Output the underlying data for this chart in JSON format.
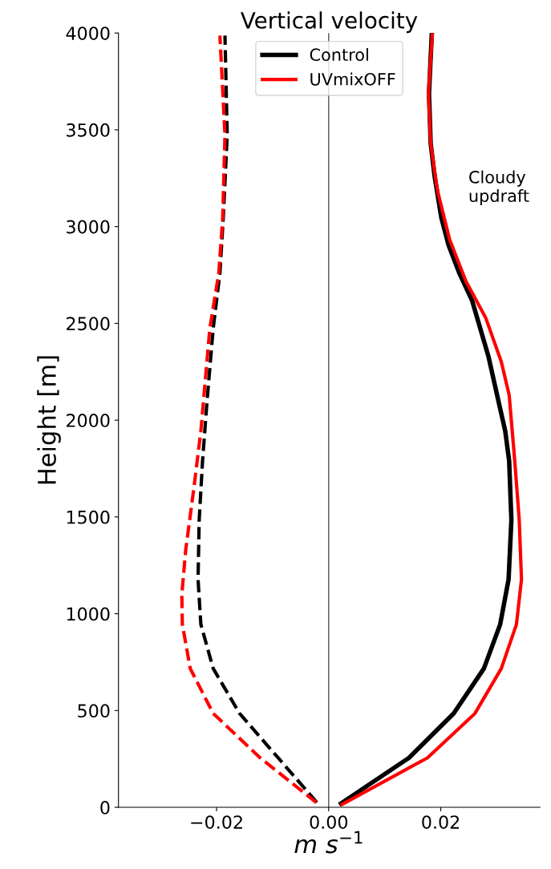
{
  "chart_data": {
    "type": "line",
    "title": "Vertical velocity",
    "xlabel": "m s$^{−1}$",
    "ylabel": "Height [m]",
    "annotations": [
      "Cloudy updraft"
    ],
    "xlim": [
      -0.0375,
      0.0377
    ],
    "ylim": [
      0,
      4000
    ],
    "xticks": [
      {
        "value": -0.02,
        "label": "−0.02"
      },
      {
        "value": 0,
        "label": "0.00"
      },
      {
        "value": 0.02,
        "label": "0.02"
      }
    ],
    "yticks": [
      0,
      500,
      1000,
      1500,
      2000,
      2500,
      3000,
      3500,
      4000
    ],
    "grid": false,
    "legend": "top",
    "ref_lines": [
      {
        "axis": "x",
        "value": 0,
        "color": "#555555"
      }
    ],
    "series": [
      {
        "name": "Control",
        "color": "#000000",
        "line_style": "solid",
        "x": [
          0.0022,
          0.0143,
          0.0223,
          0.0277,
          0.0306,
          0.0321,
          0.0326,
          0.0322,
          0.0315,
          0.0303,
          0.0285,
          0.0256,
          0.0233,
          0.0214,
          0.0201,
          0.0189,
          0.0182,
          0.0179,
          0.0184
        ],
        "values": [
          20,
          255,
          485,
          717,
          945,
          1177,
          1484,
          1790,
          1944,
          2097,
          2330,
          2617,
          2760,
          2903,
          3046,
          3260,
          3430,
          3688,
          3995
        ]
      },
      {
        "name": "UVmixOFF",
        "color": "#ff0000",
        "line_style": "solid",
        "x": [
          0.0024,
          0.0176,
          0.0261,
          0.0308,
          0.0335,
          0.0344,
          0.034,
          0.0332,
          0.0323,
          0.0322,
          0.0308,
          0.028,
          0.0245,
          0.0216,
          0.0194,
          0.0182,
          0.0178,
          0.0185
        ],
        "values": [
          15,
          255,
          485,
          717,
          945,
          1177,
          1484,
          1790,
          2097,
          2130,
          2302,
          2530,
          2717,
          2931,
          3188,
          3430,
          3688,
          3995
        ]
      },
      {
        "color": "#000000",
        "line_style": "dashed",
        "x": [
          -0.0021,
          -0.009,
          -0.0159,
          -0.0206,
          -0.0228,
          -0.0233,
          -0.0231,
          -0.0225,
          -0.0217,
          -0.0206,
          -0.0194,
          -0.0188,
          -0.0181,
          -0.0185
        ],
        "values": [
          25,
          255,
          485,
          717,
          945,
          1177,
          1484,
          1790,
          2097,
          2474,
          2760,
          3046,
          3473,
          3987
        ]
      },
      {
        "color": "#ff0000",
        "line_style": "dashed",
        "x": [
          -0.0022,
          -0.0122,
          -0.0206,
          -0.0247,
          -0.0261,
          -0.0262,
          -0.0255,
          -0.0241,
          -0.0228,
          -0.0212,
          -0.0196,
          -0.0189,
          -0.0185,
          -0.0194
        ],
        "values": [
          25,
          255,
          485,
          717,
          945,
          1098,
          1330,
          1637,
          1944,
          2474,
          2760,
          3046,
          3473,
          3987
        ]
      }
    ]
  }
}
